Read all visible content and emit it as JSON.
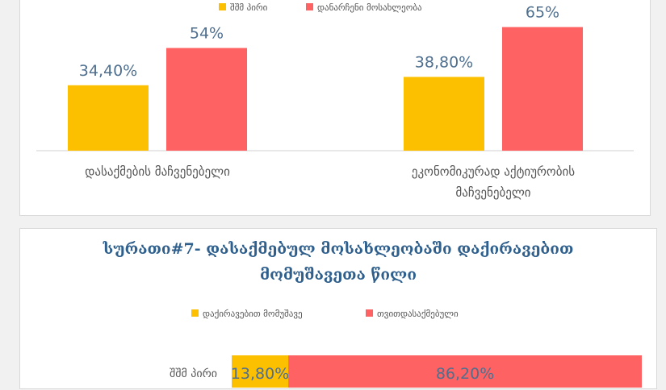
{
  "colors": {
    "yellow": "#fdc000",
    "red": "#ff6262",
    "axis_text": "#555555",
    "value_text": "#4f6f8f"
  },
  "chart_data": [
    {
      "type": "bar",
      "title": "",
      "legend": {
        "placement": "top",
        "entries": [
          "შშმ პირი",
          "დანარჩენი მოსახლეობა"
        ]
      },
      "categories": [
        [
          "დასაქმების მაჩვენებელი"
        ],
        [
          "ეკონომიკურად აქტიურობის",
          "მაჩვენებელი"
        ]
      ],
      "series": [
        {
          "name": "შშმ პირი",
          "values": [
            34.4,
            38.8
          ],
          "labels": [
            "34,40%",
            "38,80%"
          ],
          "color": "#fdc000"
        },
        {
          "name": "დანარჩენი მოსახლეობა",
          "values": [
            54,
            65
          ],
          "labels": [
            "54%",
            "65%"
          ],
          "color": "#ff6262"
        }
      ],
      "ylim": [
        0,
        100
      ],
      "grid": false
    },
    {
      "type": "bar",
      "orientation": "horizontal-stacked",
      "title": [
        "სურათი#7- დასაქმებულ მოსახლეობაში დაქირავებით",
        "მომუშავეთა წილი"
      ],
      "legend": {
        "placement": "top",
        "entries": [
          "დაქირავებით მომუშავე",
          "თვითდასაქმებული"
        ]
      },
      "categories": [
        "შშმ პირი"
      ],
      "series": [
        {
          "name": "დაქირავებით მომუშავე",
          "values": [
            13.8
          ],
          "labels": [
            "13,80%"
          ],
          "color": "#fdc000"
        },
        {
          "name": "თვითდასაქმებული",
          "values": [
            86.2
          ],
          "labels": [
            "86,20%"
          ],
          "color": "#ff6262"
        }
      ],
      "xlim": [
        0,
        100
      ],
      "grid": false
    }
  ]
}
